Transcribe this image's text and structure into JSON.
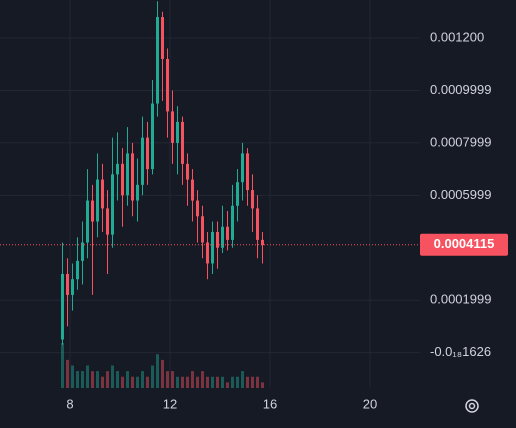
{
  "chart_data": {
    "type": "candlestick",
    "x": [
      7.7,
      7.9,
      8.1,
      8.3,
      8.5,
      8.7,
      8.9,
      9.1,
      9.3,
      9.5,
      9.7,
      9.9,
      10.1,
      10.3,
      10.5,
      10.7,
      10.9,
      11.1,
      11.3,
      11.5,
      11.7,
      11.9,
      12.1,
      12.3,
      12.5,
      12.7,
      12.9,
      13.1,
      13.3,
      13.5,
      13.7,
      13.9,
      14.1,
      14.3,
      14.5,
      14.7,
      14.9,
      15.1,
      15.3,
      15.5,
      15.7
    ],
    "open": [
      5e-05,
      0.0003,
      0.00022,
      0.00028,
      0.00035,
      0.00042,
      0.00058,
      0.0005,
      0.00066,
      0.00055,
      0.00045,
      0.00068,
      0.00072,
      0.0006,
      0.00076,
      0.00058,
      0.00064,
      0.00082,
      0.0007,
      0.00095,
      0.00128,
      0.00112,
      0.00092,
      0.0008,
      0.00088,
      0.00072,
      0.00066,
      0.00058,
      0.00052,
      0.00042,
      0.00034,
      0.00046,
      0.0004,
      0.00048,
      0.00043,
      0.00056,
      0.00065,
      0.00076,
      0.00062,
      0.00055,
      0.00043
    ],
    "high": [
      0.00042,
      0.00036,
      0.00034,
      0.00044,
      0.0005,
      0.0007,
      0.00064,
      0.00076,
      0.00072,
      0.00062,
      0.00082,
      0.00084,
      0.00078,
      0.00086,
      0.0008,
      0.00074,
      0.0009,
      0.00088,
      0.00104,
      0.00134,
      0.0013,
      0.00116,
      0.001,
      0.00094,
      0.0009,
      0.00076,
      0.0007,
      0.00062,
      0.00056,
      0.00046,
      0.0005,
      0.0005,
      0.00056,
      0.00054,
      0.00064,
      0.0007,
      0.0008,
      0.00078,
      0.00068,
      0.0006,
      0.00046
    ],
    "low": [
      3e-05,
      0.0001,
      0.00016,
      0.00024,
      0.00026,
      0.00036,
      0.00022,
      0.00044,
      0.00046,
      0.0003,
      0.0004,
      0.00058,
      0.00048,
      0.00056,
      0.00052,
      0.0005,
      0.0006,
      0.00064,
      0.00068,
      0.0009,
      0.00096,
      0.00082,
      0.00072,
      0.00068,
      0.00064,
      0.00056,
      0.0005,
      0.00042,
      0.00036,
      0.00028,
      0.0003,
      0.00032,
      0.00038,
      0.00039,
      0.0004,
      0.0005,
      0.00058,
      0.00056,
      0.00046,
      0.00036,
      0.00034
    ],
    "close": [
      0.0003,
      0.00022,
      0.00028,
      0.00035,
      0.00042,
      0.00058,
      0.0005,
      0.00066,
      0.00055,
      0.00045,
      0.00068,
      0.00072,
      0.0006,
      0.00076,
      0.00058,
      0.00064,
      0.00082,
      0.0007,
      0.00095,
      0.00128,
      0.00112,
      0.00092,
      0.0008,
      0.00088,
      0.00072,
      0.00066,
      0.00058,
      0.00052,
      0.00042,
      0.00034,
      0.00046,
      0.0004,
      0.00048,
      0.00043,
      0.00056,
      0.00065,
      0.00076,
      0.00062,
      0.00055,
      0.00043,
      0.00041
    ],
    "volume": [
      8,
      5,
      4,
      3,
      3,
      4,
      3,
      3,
      2,
      3,
      4,
      3,
      2,
      3,
      2,
      2,
      3,
      2,
      4,
      6,
      5,
      3,
      3,
      2,
      2,
      2,
      3,
      2,
      3,
      2,
      2,
      2,
      2,
      1,
      2,
      2,
      3,
      2,
      2,
      2,
      1
    ],
    "up_color": "#22ab94",
    "down_color": "#f7525f",
    "last_price": {
      "value": 0.0004115,
      "label": "0.0004115"
    },
    "xlim": [
      5.2,
      22
    ],
    "xticks": [
      8,
      12,
      16,
      20
    ],
    "ylim": [
      -0.000135,
      0.001345
    ],
    "yticks": [
      {
        "value": -1.626e-19,
        "label": "-0.0₁₈1626"
      },
      0.0001999,
      0.0005999,
      0.0007999,
      0.0009999,
      {
        "value": 0.0012,
        "label": "0.001200"
      }
    ],
    "grid": true
  }
}
